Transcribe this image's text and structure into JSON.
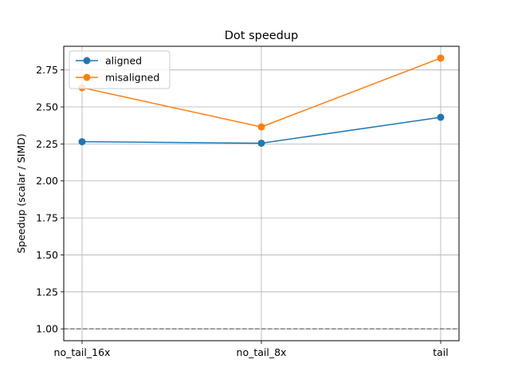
{
  "chart_data": {
    "type": "line",
    "title": "Dot speedup",
    "xlabel": "",
    "ylabel": "Speedup (scalar / SIMD)",
    "categories": [
      "no_tail_16x",
      "no_tail_8x",
      "tail"
    ],
    "series": [
      {
        "name": "aligned",
        "color": "#1f77b4",
        "values": [
          2.265,
          2.255,
          2.43
        ]
      },
      {
        "name": "misaligned",
        "color": "#ff7f0e",
        "values": [
          2.63,
          2.365,
          2.83
        ]
      }
    ],
    "ylim": [
      0.92,
      2.91
    ],
    "yticks": [
      1.0,
      1.25,
      1.5,
      1.75,
      2.0,
      2.25,
      2.5,
      2.75
    ],
    "reference_line": {
      "y": 1.0,
      "style": "dashed",
      "color": "#808080"
    },
    "grid": true,
    "legend": "top-left"
  }
}
